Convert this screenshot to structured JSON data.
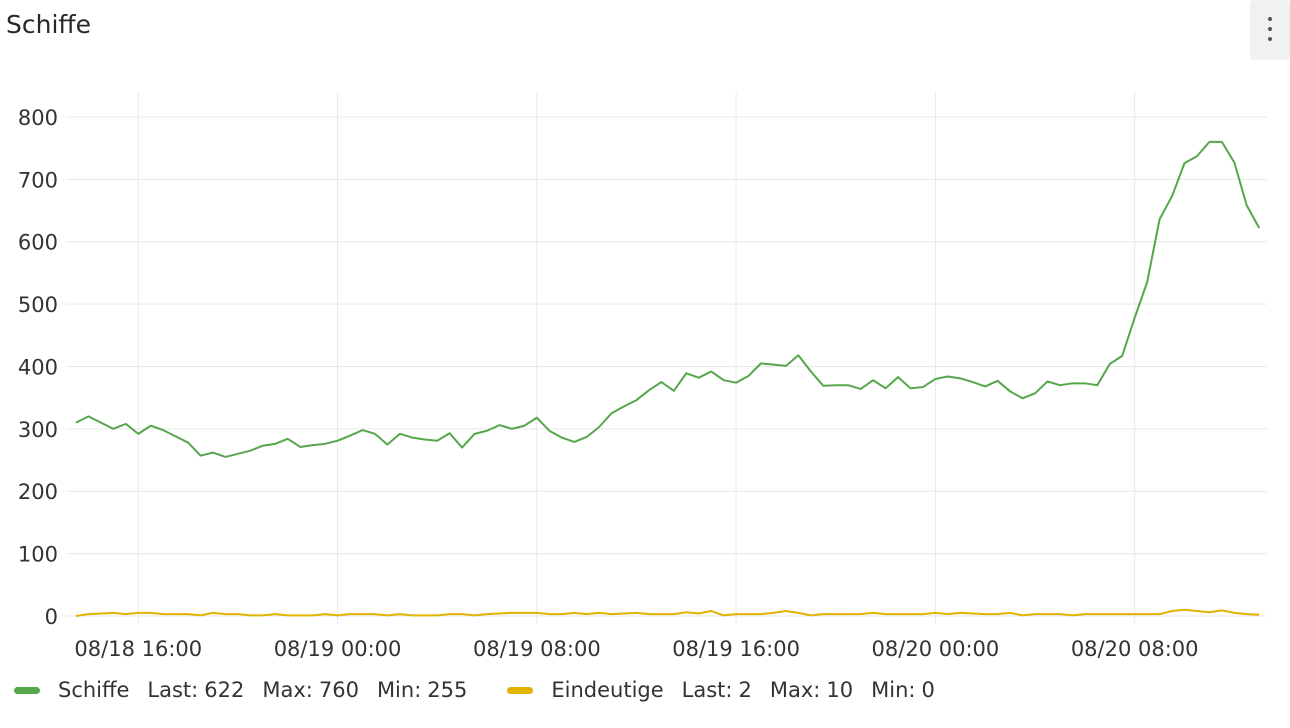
{
  "chart_data": {
    "type": "line",
    "title": "Schiffe",
    "x": [
      "08/18 13:30",
      "08/18 14:00",
      "08/18 14:30",
      "08/18 15:00",
      "08/18 15:30",
      "08/18 16:00",
      "08/18 16:30",
      "08/18 17:00",
      "08/18 17:30",
      "08/18 18:00",
      "08/18 18:30",
      "08/18 19:00",
      "08/18 19:30",
      "08/18 20:00",
      "08/18 20:30",
      "08/18 21:00",
      "08/18 21:30",
      "08/18 22:00",
      "08/18 22:30",
      "08/18 23:00",
      "08/18 23:30",
      "08/19 00:00",
      "08/19 00:30",
      "08/19 01:00",
      "08/19 01:30",
      "08/19 02:00",
      "08/19 02:30",
      "08/19 03:00",
      "08/19 03:30",
      "08/19 04:00",
      "08/19 04:30",
      "08/19 05:00",
      "08/19 05:30",
      "08/19 06:00",
      "08/19 06:30",
      "08/19 07:00",
      "08/19 07:30",
      "08/19 08:00",
      "08/19 08:30",
      "08/19 09:00",
      "08/19 09:30",
      "08/19 10:00",
      "08/19 10:30",
      "08/19 11:00",
      "08/19 11:30",
      "08/19 12:00",
      "08/19 12:30",
      "08/19 13:00",
      "08/19 13:30",
      "08/19 14:00",
      "08/19 14:30",
      "08/19 15:00",
      "08/19 15:30",
      "08/19 16:00",
      "08/19 16:30",
      "08/19 17:00",
      "08/19 17:30",
      "08/19 18:00",
      "08/19 18:30",
      "08/19 19:00",
      "08/19 19:30",
      "08/19 20:00",
      "08/19 20:30",
      "08/19 21:00",
      "08/19 21:30",
      "08/19 22:00",
      "08/19 22:30",
      "08/19 23:00",
      "08/19 23:30",
      "08/20 00:00",
      "08/20 00:30",
      "08/20 01:00",
      "08/20 01:30",
      "08/20 02:00",
      "08/20 02:30",
      "08/20 03:00",
      "08/20 03:30",
      "08/20 04:00",
      "08/20 04:30",
      "08/20 05:00",
      "08/20 05:30",
      "08/20 06:00",
      "08/20 06:30",
      "08/20 07:00",
      "08/20 07:30",
      "08/20 08:00",
      "08/20 08:30",
      "08/20 09:00",
      "08/20 09:30",
      "08/20 10:00",
      "08/20 10:30",
      "08/20 11:00",
      "08/20 11:30",
      "08/20 12:00",
      "08/20 12:30",
      "08/20 13:00"
    ],
    "xticks": [
      "08/18 16:00",
      "08/19 00:00",
      "08/19 08:00",
      "08/19 16:00",
      "08/20 00:00",
      "08/20 08:00"
    ],
    "ylim": [
      0,
      840
    ],
    "yticks": [
      0,
      100,
      200,
      300,
      400,
      500,
      600,
      700,
      800
    ],
    "grid": true,
    "series": [
      {
        "name": "Schiffe",
        "color": "#56a64b",
        "values": [
          310,
          320,
          310,
          300,
          308,
          292,
          305,
          298,
          288,
          278,
          257,
          262,
          255,
          260,
          265,
          273,
          276,
          284,
          271,
          274,
          276,
          281,
          289,
          298,
          292,
          275,
          292,
          286,
          283,
          281,
          293,
          270,
          292,
          297,
          306,
          300,
          305,
          318,
          297,
          286,
          279,
          287,
          303,
          325,
          336,
          346,
          362,
          375,
          361,
          389,
          382,
          392,
          378,
          374,
          385,
          405,
          403,
          401,
          418,
          392,
          369,
          370,
          370,
          364,
          378,
          365,
          383,
          365,
          367,
          380,
          384,
          381,
          375,
          368,
          377,
          360,
          349,
          357,
          376,
          370,
          373,
          373,
          370,
          404,
          417,
          478,
          535,
          636,
          673,
          726,
          737,
          760,
          760,
          727,
          658,
          622
        ],
        "stats": [
          {
            "label": "Last:",
            "value": 622
          },
          {
            "label": "Max:",
            "value": 760
          },
          {
            "label": "Min:",
            "value": 255
          }
        ]
      },
      {
        "name": "Eindeutige",
        "color": "#e0b400",
        "values": [
          0,
          3,
          4,
          5,
          3,
          5,
          5,
          3,
          3,
          3,
          1,
          5,
          3,
          3,
          1,
          1,
          3,
          1,
          1,
          1,
          3,
          1,
          3,
          3,
          3,
          1,
          3,
          1,
          1,
          1,
          3,
          3,
          1,
          3,
          4,
          5,
          5,
          5,
          3,
          3,
          5,
          3,
          5,
          3,
          4,
          5,
          3,
          3,
          3,
          6,
          4,
          8,
          1,
          3,
          3,
          3,
          5,
          8,
          5,
          1,
          3,
          3,
          3,
          3,
          5,
          3,
          3,
          3,
          3,
          5,
          3,
          5,
          4,
          3,
          3,
          5,
          1,
          3,
          3,
          3,
          1,
          3,
          3,
          3,
          3,
          3,
          3,
          3,
          8,
          10,
          8,
          6,
          9,
          5,
          3,
          2
        ],
        "stats": [
          {
            "label": "Last:",
            "value": 2
          },
          {
            "label": "Max:",
            "value": 10
          },
          {
            "label": "Min:",
            "value": 0
          }
        ]
      }
    ]
  }
}
